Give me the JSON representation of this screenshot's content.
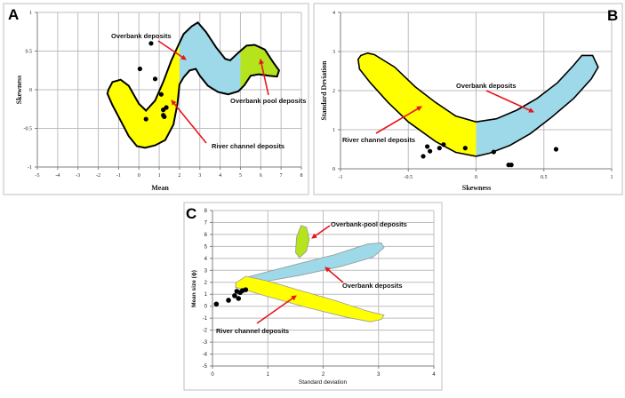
{
  "colors": {
    "river_channel": "#ffff00",
    "overbank": "#9dd9e8",
    "overbank_pool": "#b5e31c",
    "arrow": "#e8141b",
    "points": "#000000"
  },
  "chart_data": [
    {
      "panel": "A",
      "type": "scatter",
      "title": "",
      "xlabel": "Mean",
      "ylabel": "Skewness",
      "xlim": [
        -5,
        8
      ],
      "ylim": [
        -1,
        1
      ],
      "xticks": [
        -5,
        -4,
        -3,
        -2,
        -1,
        0,
        1,
        2,
        3,
        4,
        5,
        6,
        7,
        8
      ],
      "yticks": [
        -1,
        -0.5,
        0,
        0.5,
        1
      ],
      "ytick_labels": [
        "-1",
        "-0.5",
        "0",
        "0.5",
        "1"
      ],
      "grid": true,
      "points": [
        {
          "x": 0.05,
          "y": 0.27
        },
        {
          "x": 0.6,
          "y": 0.6
        },
        {
          "x": 0.8,
          "y": 0.14
        },
        {
          "x": 1.1,
          "y": -0.06
        },
        {
          "x": 0.35,
          "y": -0.38
        },
        {
          "x": 1.2,
          "y": -0.26
        },
        {
          "x": 1.35,
          "y": -0.23
        },
        {
          "x": 1.2,
          "y": -0.33
        },
        {
          "x": 1.25,
          "y": -0.35
        }
      ],
      "regions": [
        {
          "name": "River channel deposits",
          "color_key": "river_channel",
          "x_range": [
            -1.5,
            2
          ]
        },
        {
          "name": "Overbank deposits",
          "color_key": "overbank",
          "x_range": [
            2,
            5
          ]
        },
        {
          "name": "Overbank pool deposits",
          "color_key": "overbank_pool",
          "x_range": [
            5,
            6.9
          ]
        }
      ],
      "annotations": [
        {
          "text": "Overbank deposits",
          "points_to": {
            "x": 2.6,
            "y": 0.38
          }
        },
        {
          "text": "Overbank pool deposits",
          "points_to": {
            "x": 6.0,
            "y": 0.4
          }
        },
        {
          "text": "River channel deposits",
          "points_to": {
            "x": 1.5,
            "y": -0.12
          }
        }
      ]
    },
    {
      "panel": "B",
      "type": "scatter",
      "title": "",
      "xlabel": "Skewness",
      "ylabel": "Standard Deviation",
      "xlim": [
        -1,
        1
      ],
      "ylim": [
        0,
        4
      ],
      "xticks": [
        -1,
        -0.5,
        0,
        0.5,
        1
      ],
      "xtick_labels": [
        "-1",
        "-0.5",
        "0",
        "0.5",
        "1"
      ],
      "yticks": [
        0,
        1,
        2,
        3,
        4
      ],
      "grid": true,
      "points": [
        {
          "x": -0.39,
          "y": 0.32
        },
        {
          "x": -0.36,
          "y": 0.57
        },
        {
          "x": -0.34,
          "y": 0.45
        },
        {
          "x": -0.27,
          "y": 0.53
        },
        {
          "x": -0.24,
          "y": 0.62
        },
        {
          "x": -0.08,
          "y": 0.53
        },
        {
          "x": 0.13,
          "y": 0.43
        },
        {
          "x": 0.24,
          "y": 0.1
        },
        {
          "x": 0.26,
          "y": 0.1
        },
        {
          "x": 0.59,
          "y": 0.5
        }
      ],
      "regions": [
        {
          "name": "River channel deposits",
          "color_key": "river_channel",
          "x_range": [
            -0.87,
            0
          ]
        },
        {
          "name": "Overbank deposits",
          "color_key": "overbank",
          "x_range": [
            0,
            0.9
          ]
        }
      ],
      "annotations": [
        {
          "text": "Overbank deposits",
          "points_to": {
            "x": 0.45,
            "y": 1.45
          }
        },
        {
          "text": "River channel deposits",
          "points_to": {
            "x": -0.4,
            "y": 1.6
          }
        }
      ]
    },
    {
      "panel": "C",
      "type": "scatter",
      "title": "",
      "xlabel": "Standard deviation",
      "ylabel": "Mean size (ϕ)",
      "xlim": [
        0,
        4
      ],
      "ylim": [
        -5,
        8
      ],
      "xticks": [
        0,
        1,
        2,
        3,
        4
      ],
      "yticks": [
        -5,
        -4,
        -3,
        -2,
        -1,
        0,
        1,
        2,
        3,
        4,
        5,
        6,
        7,
        8
      ],
      "grid": true,
      "points": [
        {
          "x": 0.07,
          "y": 0.18
        },
        {
          "x": 0.29,
          "y": 0.5
        },
        {
          "x": 0.4,
          "y": 0.88
        },
        {
          "x": 0.44,
          "y": 1.25
        },
        {
          "x": 0.47,
          "y": 0.65
        },
        {
          "x": 0.5,
          "y": 1.15
        },
        {
          "x": 0.54,
          "y": 1.3
        },
        {
          "x": 0.6,
          "y": 1.38
        }
      ],
      "regions": [
        {
          "name": "Overbank-pool deposits",
          "color_key": "overbank_pool",
          "x_range": [
            1.5,
            1.75
          ],
          "y_range": [
            4.1,
            6.9
          ]
        },
        {
          "name": "Overbank deposits",
          "color_key": "overbank",
          "x_range": [
            0.4,
            3.1
          ],
          "y_range": [
            1.3,
            5.4
          ]
        },
        {
          "name": "River channel deposits",
          "color_key": "river_channel",
          "x_range": [
            0.4,
            3.1
          ],
          "y_range": [
            -1.3,
            2.5
          ]
        }
      ],
      "annotations": [
        {
          "text": "Overbank-pool deposits",
          "points_to": {
            "x": 1.75,
            "y": 5.6
          }
        },
        {
          "text": "Overbank deposits",
          "points_to": {
            "x": 2.0,
            "y": 3.1
          }
        },
        {
          "text": "River channel deposits",
          "points_to": {
            "x": 1.55,
            "y": 0.6
          }
        }
      ]
    }
  ],
  "labels": {
    "panel_a": "A",
    "panel_b": "B",
    "panel_c": "C",
    "a_overbank": "Overbank deposits",
    "a_pool": "Overbank pool deposits",
    "a_river": "River channel deposits",
    "b_overbank": "Overbank deposits",
    "b_river": "River channel deposits",
    "c_pool": "Overbank-pool deposits",
    "c_overbank": "Overbank deposits",
    "c_river": "River channel deposits"
  }
}
